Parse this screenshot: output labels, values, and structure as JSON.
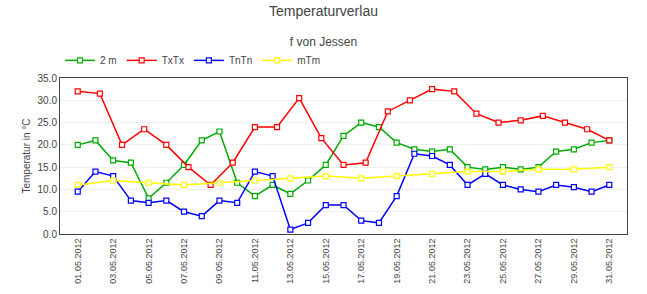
{
  "chart_data": {
    "type": "line",
    "title": "Temperaturverlau",
    "subtitle": "f von Jessen",
    "y_label": "Temperatur in °C",
    "xlim": [
      0,
      32
    ],
    "xticks": [
      {
        "value": 1,
        "label": "01.05.2012"
      },
      {
        "value": 3,
        "label": "03.05.2012"
      },
      {
        "value": 5,
        "label": "05.05.2012"
      },
      {
        "value": 7,
        "label": "07.05.2012"
      },
      {
        "value": 9,
        "label": "09.05.2012"
      },
      {
        "value": 11,
        "label": "11.05.2012"
      },
      {
        "value": 13,
        "label": "13.05.2012"
      },
      {
        "value": 15,
        "label": "15.05.2012"
      },
      {
        "value": 17,
        "label": "17.05.2012"
      },
      {
        "value": 19,
        "label": "19.05.2012"
      },
      {
        "value": 21,
        "label": "21.05.2012"
      },
      {
        "value": 23,
        "label": "23.05.2012"
      },
      {
        "value": 25,
        "label": "25.05.2012"
      },
      {
        "value": 27,
        "label": "27.05.2012"
      },
      {
        "value": 29,
        "label": "29.05.2012"
      },
      {
        "value": 31,
        "label": "31.05.2012"
      }
    ],
    "ylim": [
      0.0,
      35.0
    ],
    "yticks": [
      {
        "value": 0.0,
        "label": "0.0"
      },
      {
        "value": 5.0,
        "label": "5.0"
      },
      {
        "value": 10.0,
        "label": "10.0"
      },
      {
        "value": 15.0,
        "label": "15.0"
      },
      {
        "value": 20.0,
        "label": "20.0"
      },
      {
        "value": 25.0,
        "label": "25.0"
      },
      {
        "value": 30.0,
        "label": "30.0"
      },
      {
        "value": 35.0,
        "label": "35.0"
      }
    ],
    "grid": true,
    "legend": "upper left",
    "marker": "square",
    "line_style": "solid",
    "series": [
      {
        "name": "2 m",
        "color": "#00AA00",
        "x": [
          1,
          2,
          3,
          4,
          5,
          6,
          7,
          8,
          9,
          10,
          11,
          12,
          13,
          14,
          15,
          16,
          17,
          18,
          19,
          20,
          21,
          22,
          23,
          24,
          25,
          26,
          27,
          28,
          29,
          30,
          31
        ],
        "values": [
          20.0,
          21.0,
          16.5,
          16.0,
          8.0,
          11.5,
          15.5,
          21.0,
          23.0,
          11.5,
          8.5,
          11.0,
          9.0,
          12.0,
          15.5,
          22.0,
          25.0,
          24.0,
          20.5,
          19.0,
          18.5,
          19.0,
          15.0,
          14.5,
          15.0,
          14.5,
          15.0,
          18.5,
          19.0,
          20.5,
          21.0
        ]
      },
      {
        "name": "TxTx",
        "color": "#FF0000",
        "x": [
          1,
          2.25,
          3.5,
          4.75,
          6,
          7.25,
          8.5,
          9.75,
          11,
          12.25,
          13.5,
          14.75,
          16,
          17.25,
          18.5,
          19.75,
          21,
          22.25,
          23.5,
          24.75,
          26,
          27.25,
          28.5,
          29.75,
          31
        ],
        "values": [
          32.0,
          31.5,
          20.0,
          23.5,
          20.0,
          15.0,
          11.0,
          16.0,
          24.0,
          24.0,
          30.5,
          21.5,
          15.5,
          16.0,
          27.5,
          30.0,
          32.5,
          32.0,
          27.0,
          25.0,
          25.5,
          26.5,
          25.0,
          23.5,
          21.0
        ]
      },
      {
        "name": "TnTn",
        "color": "#0000FF",
        "x": [
          1,
          2,
          3,
          4,
          5,
          6,
          7,
          8,
          9,
          10,
          11,
          12,
          13,
          14,
          15,
          16,
          17,
          18,
          19,
          20,
          21,
          22,
          23,
          24,
          25,
          26,
          27,
          28,
          29,
          30,
          31
        ],
        "values": [
          9.5,
          14.0,
          13.0,
          7.5,
          7.0,
          7.5,
          5.0,
          4.0,
          7.5,
          7.0,
          14.0,
          13.0,
          1.0,
          2.5,
          6.5,
          6.5,
          3.0,
          2.5,
          8.5,
          18.0,
          17.5,
          15.5,
          11.0,
          13.5,
          11.0,
          10.0,
          9.5,
          11.0,
          10.5,
          9.5,
          11.0
        ]
      },
      {
        "name": "mTm",
        "color": "#FFFF00",
        "x": [
          1,
          3,
          5,
          7,
          9,
          11,
          13,
          15,
          17,
          19,
          21,
          23,
          25,
          27,
          29,
          31
        ],
        "values": [
          11.0,
          12.0,
          11.5,
          11.0,
          11.5,
          12.0,
          12.5,
          13.0,
          12.5,
          13.0,
          13.5,
          14.0,
          14.0,
          14.5,
          14.5,
          15.0
        ]
      }
    ]
  }
}
